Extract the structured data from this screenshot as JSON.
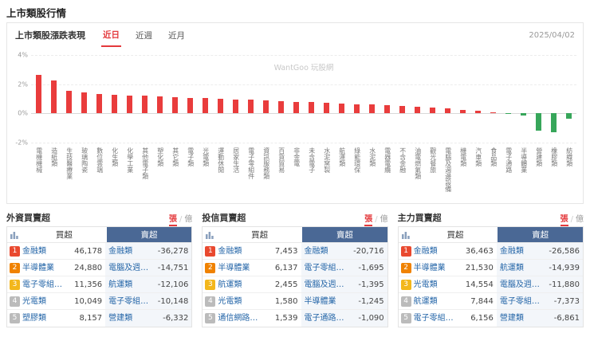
{
  "colors": {
    "up": "#e93c3c",
    "down": "#37a65a",
    "accent_red": "#e4393c",
    "sell_header_bg": "#4a6895",
    "sell_col_bg": "#f3f6fa",
    "link": "#2566a8",
    "rank_colors": [
      "#e9492f",
      "#f08200",
      "#f3b71c",
      "#bbbbbb",
      "#bbbbbb"
    ]
  },
  "page": {
    "title": "上市類股行情"
  },
  "chart_card": {
    "title": "上市類股漲跌表現",
    "tabs": [
      {
        "label": "近日",
        "active": true
      },
      {
        "label": "近週",
        "active": false
      },
      {
        "label": "近月",
        "active": false
      }
    ],
    "date": "2025/04/02",
    "watermark": "WantGoo 玩股網"
  },
  "chart_data": {
    "type": "bar",
    "title": "上市類股漲跌表現",
    "unit": "%",
    "ylim": [
      -2,
      4
    ],
    "yticks": [
      4,
      2,
      0,
      -2
    ],
    "ytick_labels": [
      "4%",
      "2%",
      "0%",
      "-2%"
    ],
    "categories": [
      "電機機械",
      "造紙類",
      "生技醫療業",
      "玻璃陶瓷",
      "數位雲端",
      "化生類",
      "化學工業",
      "其他電子類",
      "塑化類",
      "其它類",
      "電子類",
      "光電類",
      "運動休閒",
      "居家生活",
      "電子零組件",
      "資訊服務類",
      "百貨貿易",
      "非金電",
      "未含電子",
      "水泥窯製",
      "航運類",
      "綠能環保",
      "水泥類",
      "電器電纜",
      "不含金融",
      "油電燃氣類",
      "觀光餐旅",
      "電腦及週邊設備",
      "機電類",
      "汽車類",
      "食品類",
      "電子通路",
      "半導體業",
      "營建類",
      "橡膠類",
      "紡織類"
    ],
    "values": [
      2.62,
      2.28,
      1.52,
      1.42,
      1.34,
      1.28,
      1.24,
      1.2,
      1.16,
      1.12,
      1.08,
      1.04,
      1.0,
      0.96,
      0.92,
      0.88,
      0.84,
      0.8,
      0.76,
      0.72,
      0.68,
      0.64,
      0.6,
      0.55,
      0.5,
      0.44,
      0.38,
      0.32,
      0.26,
      0.18,
      0.1,
      -0.06,
      -0.12,
      -1.18,
      -1.3,
      -0.34
    ]
  },
  "panels": [
    {
      "title": "外資買賣超",
      "unit_tabs": {
        "active": "張",
        "other": "億"
      },
      "columns": {
        "buy": "買超",
        "sell": "賣超"
      },
      "rows": [
        {
          "rank": "1",
          "buy_name": "金融類",
          "buy_value": "46,178",
          "sell_name": "金融類",
          "sell_value": "-36,278"
        },
        {
          "rank": "2",
          "buy_name": "半導體業",
          "buy_value": "24,880",
          "sell_name": "電腦及週…",
          "sell_value": "-14,751"
        },
        {
          "rank": "3",
          "buy_name": "電子零組…",
          "buy_value": "11,356",
          "sell_name": "航運類",
          "sell_value": "-12,106"
        },
        {
          "rank": "4",
          "buy_name": "光電類",
          "buy_value": "10,049",
          "sell_name": "電子零組…",
          "sell_value": "-10,148"
        },
        {
          "rank": "5",
          "buy_name": "塑膠類",
          "buy_value": "8,157",
          "sell_name": "營建類",
          "sell_value": "-6,332"
        }
      ]
    },
    {
      "title": "投信買賣超",
      "unit_tabs": {
        "active": "張",
        "other": "億"
      },
      "columns": {
        "buy": "買超",
        "sell": "賣超"
      },
      "rows": [
        {
          "rank": "1",
          "buy_name": "金融類",
          "buy_value": "7,453",
          "sell_name": "金融類",
          "sell_value": "-20,716"
        },
        {
          "rank": "2",
          "buy_name": "半導體業",
          "buy_value": "6,137",
          "sell_name": "電子零組…",
          "sell_value": "-1,695"
        },
        {
          "rank": "3",
          "buy_name": "航運類",
          "buy_value": "2,455",
          "sell_name": "電腦及週…",
          "sell_value": "-1,395"
        },
        {
          "rank": "4",
          "buy_name": "光電類",
          "buy_value": "1,580",
          "sell_name": "半導體業",
          "sell_value": "-1,245"
        },
        {
          "rank": "5",
          "buy_name": "通信網路…",
          "buy_value": "1,539",
          "sell_name": "電子通路…",
          "sell_value": "-1,090"
        }
      ]
    },
    {
      "title": "主力買賣超",
      "unit_tabs": {
        "active": "張",
        "other": "億"
      },
      "columns": {
        "buy": "買超",
        "sell": "賣超"
      },
      "rows": [
        {
          "rank": "1",
          "buy_name": "金融類",
          "buy_value": "36,463",
          "sell_name": "金融類",
          "sell_value": "-26,586"
        },
        {
          "rank": "2",
          "buy_name": "半導體業",
          "buy_value": "21,530",
          "sell_name": "航運類",
          "sell_value": "-14,939"
        },
        {
          "rank": "3",
          "buy_name": "光電類",
          "buy_value": "14,554",
          "sell_name": "電腦及週…",
          "sell_value": "-11,880"
        },
        {
          "rank": "4",
          "buy_name": "航運類",
          "buy_value": "7,844",
          "sell_name": "電子零組…",
          "sell_value": "-7,373"
        },
        {
          "rank": "5",
          "buy_name": "電子零組…",
          "buy_value": "6,156",
          "sell_name": "營建類",
          "sell_value": "-6,861"
        }
      ]
    }
  ]
}
